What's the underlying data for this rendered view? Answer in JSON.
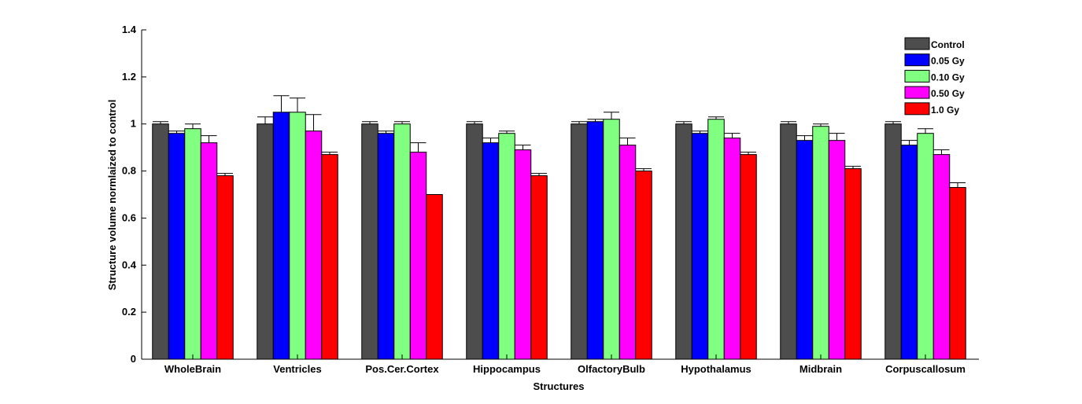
{
  "chart_data": {
    "type": "bar",
    "title": "",
    "xlabel": "Structures",
    "ylabel": "Structure volume normlaized to control",
    "ylim": [
      0,
      1.4
    ],
    "yticks": [
      0,
      0.2,
      0.4,
      0.6,
      0.8,
      1,
      1.2,
      1.4
    ],
    "ytick_labels": [
      "0",
      "0.2",
      "0.4",
      "0.6",
      "0.8",
      "1",
      "1.2",
      "1.4"
    ],
    "grid": false,
    "legend_position": "top-right",
    "categories": [
      "WholeBrain",
      "Ventricles",
      "Pos.Cer.Cortex",
      "Hippocampus",
      "OlfactoryBulb",
      "Hypothalamus",
      "Midbrain",
      "Corpuscallosum"
    ],
    "series": [
      {
        "name": "Control",
        "color": "#4d4d4d",
        "values": [
          1.0,
          1.0,
          1.0,
          1.0,
          1.0,
          1.0,
          1.0,
          1.0
        ],
        "errors": [
          0.01,
          0.03,
          0.01,
          0.01,
          0.01,
          0.01,
          0.01,
          0.01
        ]
      },
      {
        "name": "0.05 Gy",
        "color": "#0000ff",
        "values": [
          0.96,
          1.05,
          0.96,
          0.92,
          1.01,
          0.96,
          0.93,
          0.91
        ],
        "errors": [
          0.01,
          0.07,
          0.01,
          0.02,
          0.01,
          0.01,
          0.02,
          0.02
        ]
      },
      {
        "name": "0.10 Gy",
        "color": "#80ff80",
        "values": [
          0.98,
          1.05,
          1.0,
          0.96,
          1.02,
          1.02,
          0.99,
          0.96
        ],
        "errors": [
          0.02,
          0.06,
          0.01,
          0.01,
          0.03,
          0.01,
          0.01,
          0.02
        ]
      },
      {
        "name": "0.50 Gy",
        "color": "#ff00ff",
        "values": [
          0.92,
          0.97,
          0.88,
          0.89,
          0.91,
          0.94,
          0.93,
          0.87
        ],
        "errors": [
          0.03,
          0.07,
          0.04,
          0.02,
          0.03,
          0.02,
          0.03,
          0.02
        ]
      },
      {
        "name": "1.0 Gy",
        "color": "#ff0000",
        "values": [
          0.78,
          0.87,
          0.7,
          0.78,
          0.8,
          0.87,
          0.81,
          0.73
        ],
        "errors": [
          0.01,
          0.01,
          0.0,
          0.01,
          0.01,
          0.01,
          0.01,
          0.02
        ]
      }
    ]
  }
}
